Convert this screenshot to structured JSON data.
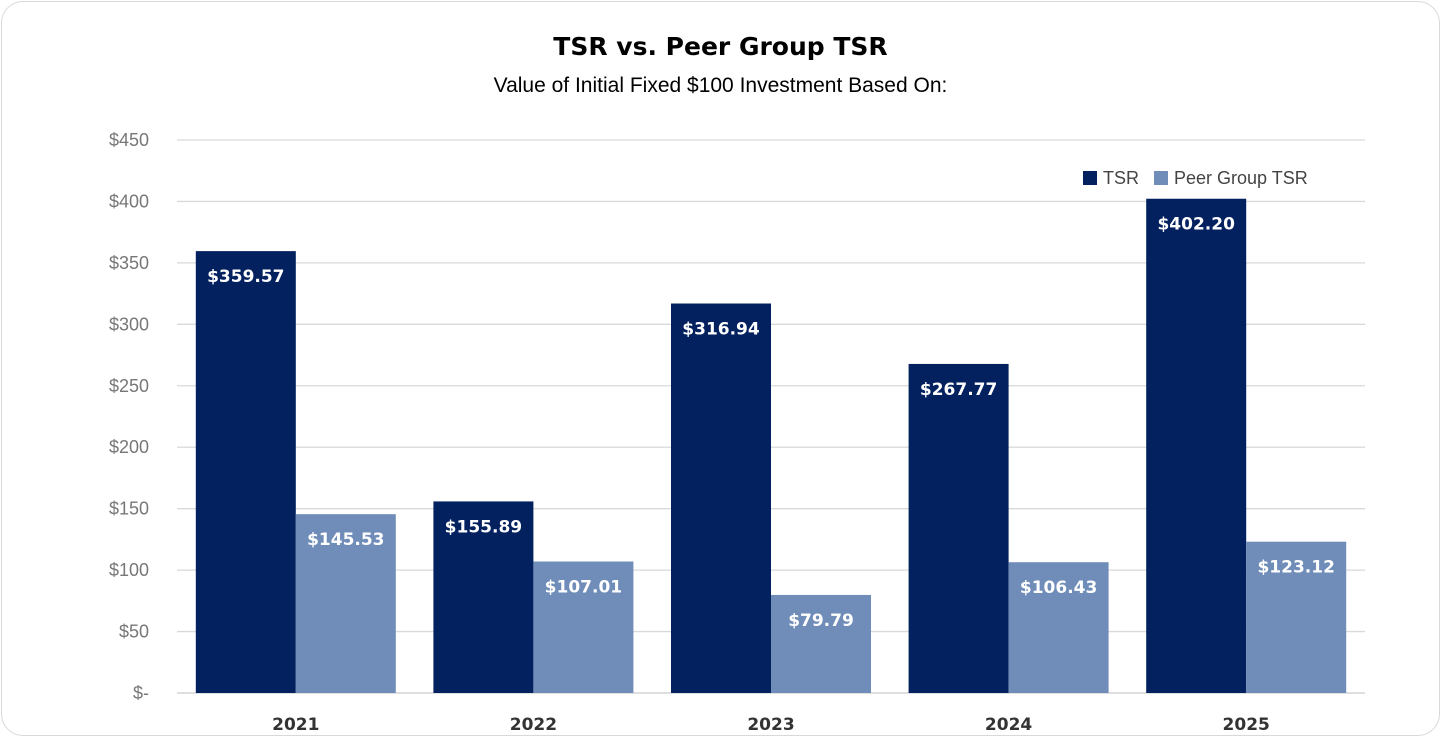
{
  "chart_data": {
    "type": "bar",
    "title": "TSR vs. Peer Group TSR",
    "subtitle": "Value of Initial Fixed $100 Investment Based On:",
    "categories": [
      "2021",
      "2022",
      "2023",
      "2024",
      "2025"
    ],
    "series": [
      {
        "name": "TSR",
        "color": "#03205f",
        "values": [
          359.57,
          155.89,
          316.94,
          267.77,
          402.2
        ],
        "labels": [
          "$359.57",
          "$155.89",
          "$316.94",
          "$267.77",
          "$402.20"
        ]
      },
      {
        "name": "Peer Group TSR",
        "color": "#6f8db8",
        "values": [
          145.53,
          107.01,
          79.79,
          106.43,
          123.12
        ],
        "labels": [
          "$145.53",
          "$107.01",
          "$79.79",
          "$106.43",
          "$123.12"
        ]
      }
    ],
    "yticks": [
      0,
      50,
      100,
      150,
      200,
      250,
      300,
      350,
      400,
      450
    ],
    "ytick_labels": [
      "$-",
      "$50",
      "$100",
      "$150",
      "$200",
      "$250",
      "$300",
      "$350",
      "$400",
      "$450"
    ],
    "ylim": [
      0,
      450
    ],
    "xlabel": "",
    "ylabel": "",
    "grid": "horizontal",
    "legend": "top-right"
  }
}
